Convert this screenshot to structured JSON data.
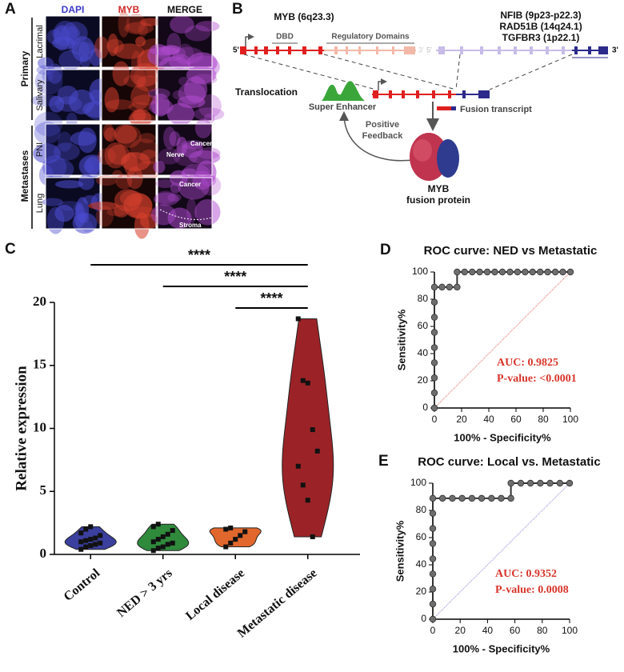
{
  "panel_a": {
    "letter": "A",
    "columns": [
      "DAPI",
      "MYB",
      "MERGE"
    ],
    "rows": [
      "Lacrimal",
      "Salivary",
      "PNI",
      "Lung"
    ],
    "groups": [
      "Primary",
      "Metastases"
    ],
    "annotations": [
      "Cancer",
      "Nerve",
      "Cancer",
      "Stroma"
    ]
  },
  "panel_b": {
    "letter": "B",
    "myb_gene": "MYB (6q23.3)",
    "partner_genes": [
      "NFIB (9p23-p22.3)",
      "RAD51B (14q24.1)",
      "TGFBR3 (1p22.1)"
    ],
    "domains": [
      "DBD",
      "Regulatory Domains"
    ],
    "ends": [
      "5'",
      "3'"
    ],
    "translocation": "Translocation",
    "super_enhancer": "Super Enhancer",
    "fusion_transcript": "Fusion transcript",
    "feedback": [
      "Positive",
      "Feedback"
    ],
    "protein": [
      "MYB",
      "fusion protein"
    ]
  },
  "chart_data": [
    {
      "type": "violin",
      "letter": "C",
      "ylabel": "Relative expression",
      "categories": [
        "Control",
        "NED > 3 yrs",
        "Local disease",
        "Metastatic disease"
      ],
      "colors": [
        "#3b3f9e",
        "#2f8a3c",
        "#e2672d",
        "#9b2327"
      ],
      "values": [
        [
          0.4,
          0.6,
          0.7,
          0.8,
          0.9,
          1.0,
          1.1,
          1.2,
          1.3,
          1.5,
          1.7,
          2.0,
          2.2
        ],
        [
          0.3,
          0.5,
          0.6,
          0.8,
          0.9,
          1.0,
          1.2,
          1.4,
          1.6,
          1.9,
          2.2,
          2.4
        ],
        [
          0.6,
          0.9,
          1.2,
          1.5,
          1.8,
          2.0,
          2.1
        ],
        [
          18.7,
          13.8,
          13.6,
          9.9,
          8.2,
          7.0,
          5.5,
          4.3,
          1.4
        ]
      ],
      "ylim": [
        0,
        20
      ],
      "yticks": [
        0,
        5,
        10,
        15,
        20
      ],
      "comparisons": [
        {
          "from": 0,
          "to": 3,
          "label": "****"
        },
        {
          "from": 1,
          "to": 3,
          "label": "****"
        },
        {
          "from": 2,
          "to": 3,
          "label": "****"
        }
      ]
    },
    {
      "type": "line",
      "letter": "D",
      "title": "ROC curve: NED vs Metastatic",
      "xlabel": "100% - Specificity%",
      "ylabel": "Sensitivity%",
      "x": [
        0,
        0,
        0,
        0,
        0,
        0,
        0,
        0,
        0,
        5.6,
        11.1,
        16.7,
        16.7,
        22.2,
        27.8,
        33.3,
        38.9,
        44.4,
        50,
        55.6,
        61.1,
        66.7,
        72.2,
        77.8,
        83.3,
        88.9,
        94.4,
        100
      ],
      "values": [
        0,
        11.1,
        22.2,
        33.3,
        44.4,
        55.6,
        66.7,
        77.8,
        88.9,
        88.9,
        88.9,
        88.9,
        100,
        100,
        100,
        100,
        100,
        100,
        100,
        100,
        100,
        100,
        100,
        100,
        100,
        100,
        100,
        100
      ],
      "color": "#6e6e6e",
      "reference_color": "#e07070",
      "xlim": [
        0,
        100
      ],
      "ylim": [
        0,
        100
      ],
      "xticks": [
        0,
        20,
        40,
        60,
        80,
        100
      ],
      "yticks": [
        0,
        20,
        40,
        60,
        80,
        100
      ],
      "annotations": [
        "AUC: 0.9825",
        "P-value: <0.0001"
      ],
      "annotation_color": "#d8342a"
    },
    {
      "type": "line",
      "letter": "E",
      "title": "ROC curve: Local vs. Metastatic",
      "xlabel": "100% - Specificity%",
      "ylabel": "Sensitivity%",
      "x": [
        0,
        0,
        0,
        0,
        0,
        0,
        0,
        0,
        0,
        7.1,
        14.3,
        21.4,
        28.6,
        35.7,
        42.9,
        50,
        57.1,
        57.1,
        64.3,
        71.4,
        78.6,
        85.7,
        92.9,
        100
      ],
      "values": [
        0,
        11.1,
        22.2,
        33.3,
        44.4,
        55.6,
        66.7,
        77.8,
        88.9,
        88.9,
        88.9,
        88.9,
        88.9,
        88.9,
        88.9,
        88.9,
        88.9,
        100,
        100,
        100,
        100,
        100,
        100,
        100
      ],
      "color": "#6e6e6e",
      "reference_color": "#8f8fd8",
      "xlim": [
        0,
        100
      ],
      "ylim": [
        0,
        100
      ],
      "xticks": [
        0,
        20,
        40,
        60,
        80,
        100
      ],
      "yticks": [
        0,
        20,
        40,
        60,
        80,
        100
      ],
      "annotations": [
        "AUC: 0.9352",
        "P-value: 0.0008"
      ],
      "annotation_color": "#d8342a"
    }
  ]
}
